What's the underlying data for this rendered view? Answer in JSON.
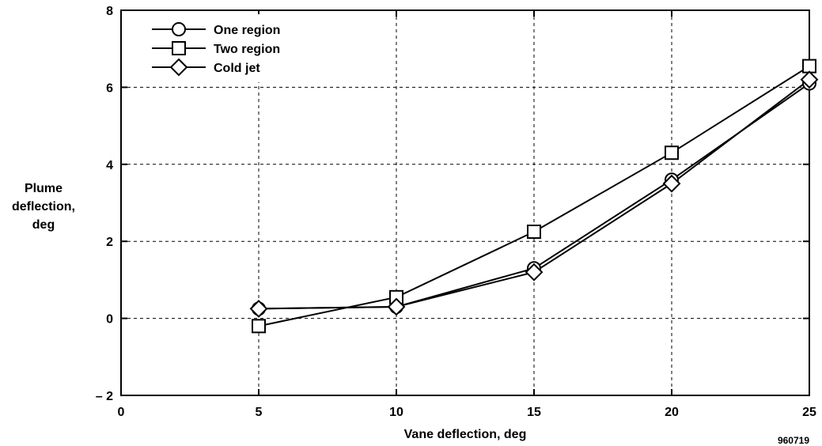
{
  "chart_data": {
    "type": "line",
    "title": "",
    "xlabel": "Vane deflection, deg",
    "ylabel_lines": [
      "Plume",
      "deflection,",
      "deg"
    ],
    "xlim": [
      0,
      25
    ],
    "ylim": [
      -2,
      8
    ],
    "xticks": [
      0,
      5,
      10,
      15,
      20,
      25
    ],
    "xtick_labels": [
      "0",
      "5",
      "10",
      "15",
      "20",
      "25"
    ],
    "yticks": [
      -2,
      0,
      2,
      4,
      6,
      8
    ],
    "ytick_labels": [
      "– 2",
      "0",
      "2",
      "4",
      "6",
      "8"
    ],
    "grid": true,
    "legend_position": "top-left",
    "x": [
      5,
      10,
      15,
      20,
      25
    ],
    "series": [
      {
        "name": "One region",
        "marker": "circle",
        "values": [
          0.25,
          0.3,
          1.3,
          3.6,
          6.1
        ]
      },
      {
        "name": "Two region",
        "marker": "square",
        "values": [
          -0.2,
          0.55,
          2.25,
          4.3,
          6.55
        ]
      },
      {
        "name": "Cold jet",
        "marker": "diamond",
        "values": [
          0.25,
          0.3,
          1.2,
          3.5,
          6.2
        ]
      }
    ],
    "figure_id": "960719"
  }
}
